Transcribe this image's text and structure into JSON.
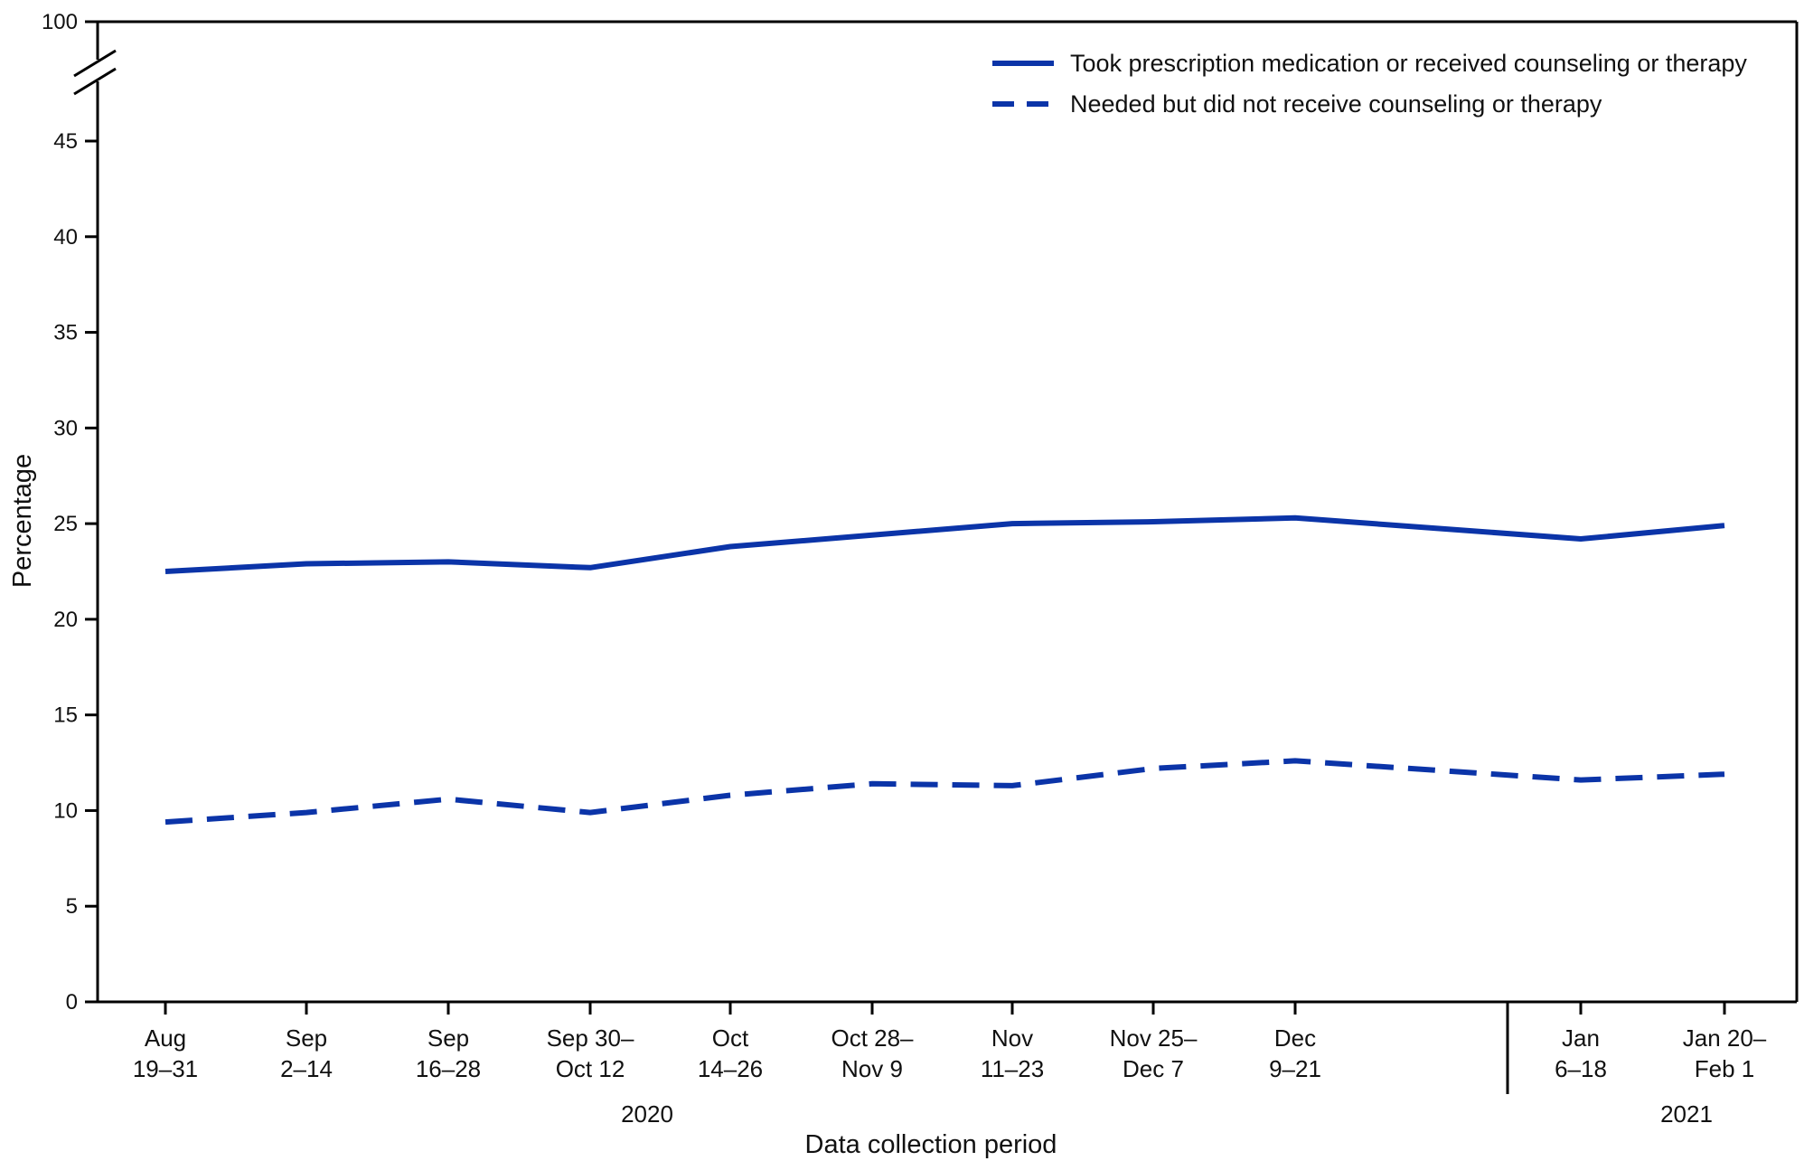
{
  "chart_data": {
    "type": "line",
    "title": "",
    "xlabel": "Data collection period",
    "ylabel": "Percentage",
    "ylim": [
      0,
      45
    ],
    "y_break_top": 100,
    "y_ticks": [
      0,
      5,
      10,
      15,
      20,
      25,
      30,
      35,
      40,
      45,
      100
    ],
    "categories": [
      [
        "Aug",
        "19–31"
      ],
      [
        "Sep",
        "2–14"
      ],
      [
        "Sep",
        "16–28"
      ],
      [
        "Sep 30–",
        "Oct 12"
      ],
      [
        "Oct",
        "14–26"
      ],
      [
        "Oct 28–",
        "Nov 9"
      ],
      [
        "Nov",
        "11–23"
      ],
      [
        "Nov 25–",
        "Dec 7"
      ],
      [
        "Dec",
        "9–21"
      ],
      [
        "Jan",
        "6–18"
      ],
      [
        "Jan 20–",
        "Feb 1"
      ]
    ],
    "years": [
      {
        "label": "2020",
        "from": 0,
        "to": 8
      },
      {
        "label": "2021",
        "from": 9,
        "to": 10
      }
    ],
    "legend_position": "top-right",
    "series": [
      {
        "name": "Took prescription medication or received counseling or therapy",
        "style": "solid",
        "color": "#0b34a8",
        "values": [
          22.5,
          22.9,
          23.0,
          22.7,
          23.8,
          24.4,
          25.0,
          25.1,
          25.3,
          24.2,
          24.9
        ]
      },
      {
        "name": "Needed but did not receive counseling or therapy",
        "style": "dashed",
        "color": "#0b34a8",
        "values": [
          9.4,
          9.9,
          10.6,
          9.9,
          10.8,
          11.4,
          11.3,
          12.2,
          12.6,
          11.6,
          11.9
        ]
      }
    ]
  }
}
